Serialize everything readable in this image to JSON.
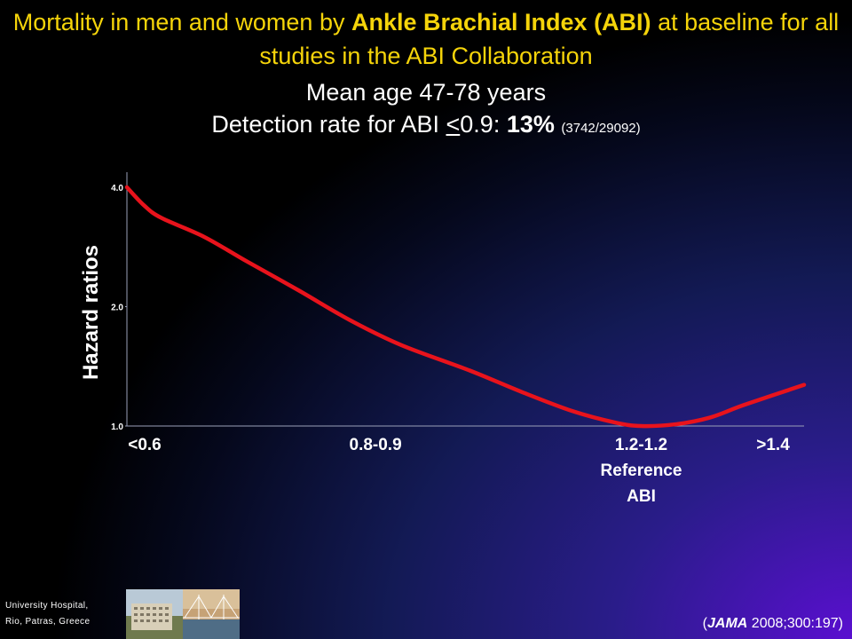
{
  "slide": {
    "title_part1": "Mortality in men and women by ",
    "title_bold": "Ankle Brachial Index (ABI)",
    "title_part2": " at baseline for all studies in the ABI Collaboration",
    "subtitle_line1": "Mean age 47-78 years",
    "subtitle_line2_prefix": "Detection rate  for ABI ",
    "subtitle_line2_underlined": "<",
    "subtitle_line2_value": "0.9: ",
    "subtitle_line2_bold": "13%",
    "subtitle_line2_small": "(3742/29092)",
    "footer_institution_line1": "University Hospital,",
    "footer_institution_line2": "Rio, Patras, Greece",
    "citation_open": "(",
    "citation_journal": "JAMA",
    "citation_rest": " 2008;300:197)"
  },
  "colors": {
    "title": "#f5d40a",
    "curve": "#e8131c",
    "axis": "#9aa0b8"
  },
  "chart_data": {
    "type": "line",
    "ylabel": "Hazard ratios",
    "ylog": true,
    "ylim": [
      1.0,
      4.0
    ],
    "yticks": [
      4.0,
      2.0,
      1.0
    ],
    "ytick_labels": [
      "4.0",
      "2.0",
      "1.0"
    ],
    "x_ticks": [
      {
        "x": 0,
        "label": "<0.6",
        "lines": [
          "<0.6"
        ]
      },
      {
        "x": 1.45,
        "label": "0.8-0.9",
        "lines": [
          "0.8-0.9"
        ]
      },
      {
        "x": 3.0,
        "label": "1.2-1.2 Reference ABI",
        "lines": [
          "1.2-1.2",
          "Reference",
          "ABI"
        ]
      },
      {
        "x": 3.8,
        "label": ">1.4",
        "lines": [
          ">1.4"
        ]
      }
    ],
    "xlim": [
      0,
      3.95
    ],
    "series": [
      {
        "color": "#e8131c",
        "x": [
          0,
          0.1,
          0.2,
          0.45,
          0.7,
          1.0,
          1.3,
          1.6,
          2.0,
          2.3,
          2.6,
          2.85,
          3.0,
          3.2,
          3.4,
          3.6,
          3.95
        ],
        "y": [
          4.0,
          3.6,
          3.35,
          3.0,
          2.6,
          2.2,
          1.85,
          1.6,
          1.38,
          1.22,
          1.09,
          1.02,
          1.0,
          1.01,
          1.05,
          1.13,
          1.27
        ]
      }
    ]
  }
}
